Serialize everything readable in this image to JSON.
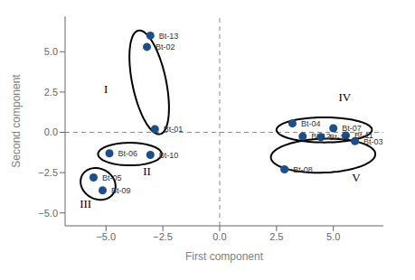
{
  "chart_data": {
    "type": "scatter",
    "x_label": "First component",
    "y_label": "Second component",
    "color": "#1a4f8a",
    "grid": false,
    "xlim": [
      -6.8,
      7.2
    ],
    "ylim": [
      -5.8,
      7.2
    ],
    "xticks": [
      {
        "value": -5.0,
        "label": "−5.0"
      },
      {
        "value": -2.5,
        "label": "−2.5"
      },
      {
        "value": 0.0,
        "label": "0.0"
      },
      {
        "value": 2.5,
        "label": "2.5"
      },
      {
        "value": 5.0,
        "label": "5.0"
      }
    ],
    "yticks": [
      {
        "value": -5.0,
        "label": "−5.0"
      },
      {
        "value": -2.5,
        "label": "−2.5"
      },
      {
        "value": 0.0,
        "label": "0.0"
      },
      {
        "value": 2.5,
        "label": "2.5"
      },
      {
        "value": 5.0,
        "label": "5.0"
      }
    ],
    "reference_lines": {
      "x": [
        0.0
      ],
      "y": [
        0.0
      ],
      "color": "#888888",
      "line_style": "dashed"
    },
    "points": [
      {
        "label": "Bt-13",
        "x": -3.05,
        "y": 6.0
      },
      {
        "label": "Bt-02",
        "x": -3.2,
        "y": 5.3
      },
      {
        "label": "Bt-01",
        "x": -2.85,
        "y": 0.2
      },
      {
        "label": "Bt-06",
        "x": -4.85,
        "y": -1.3
      },
      {
        "label": "Bt-10",
        "x": -3.05,
        "y": -1.4
      },
      {
        "label": "Bt-05",
        "x": -5.55,
        "y": -2.8
      },
      {
        "label": "Bt-09",
        "x": -5.15,
        "y": -3.6
      },
      {
        "label": "Bt-04",
        "x": 3.2,
        "y": 0.55
      },
      {
        "label": "Bt-07",
        "x": 5.0,
        "y": 0.25
      },
      {
        "label": "Bt-12",
        "x": 3.65,
        "y": -0.25
      },
      {
        "label": "Bt-14",
        "x": 4.45,
        "y": -0.3
      },
      {
        "label": "Bt-11",
        "x": 5.55,
        "y": -0.2
      },
      {
        "label": "Bt-03",
        "x": 5.95,
        "y": -0.55
      },
      {
        "label": "Bt-08",
        "x": 2.85,
        "y": -2.3
      }
    ],
    "clusters": [
      {
        "label": "I",
        "label_x": -5.0,
        "label_y": 2.7,
        "cx": -3.1,
        "cy": 3.1,
        "width": 1.5,
        "height": 6.5,
        "angle": 8,
        "color": "#000000"
      },
      {
        "label": "II",
        "label_x": -3.2,
        "label_y": -2.4,
        "cx": -3.95,
        "cy": -1.35,
        "width": 2.8,
        "height": 1.4,
        "angle": 0,
        "color": "#000000"
      },
      {
        "label": "III",
        "label_x": -5.9,
        "label_y": -4.4,
        "cx": -5.35,
        "cy": -3.2,
        "width": 1.5,
        "height": 2.0,
        "angle": 15,
        "color": "#000000"
      },
      {
        "label": "IV",
        "label_x": 5.5,
        "label_y": 2.2,
        "cx": 4.6,
        "cy": 0.15,
        "width": 4.2,
        "height": 1.55,
        "angle": 0,
        "color": "#000000"
      },
      {
        "label": "V",
        "label_x": 6.0,
        "label_y": -2.8,
        "cx": 4.55,
        "cy": -1.45,
        "width": 4.6,
        "height": 2.1,
        "angle": 3,
        "color": "#000000"
      }
    ]
  }
}
